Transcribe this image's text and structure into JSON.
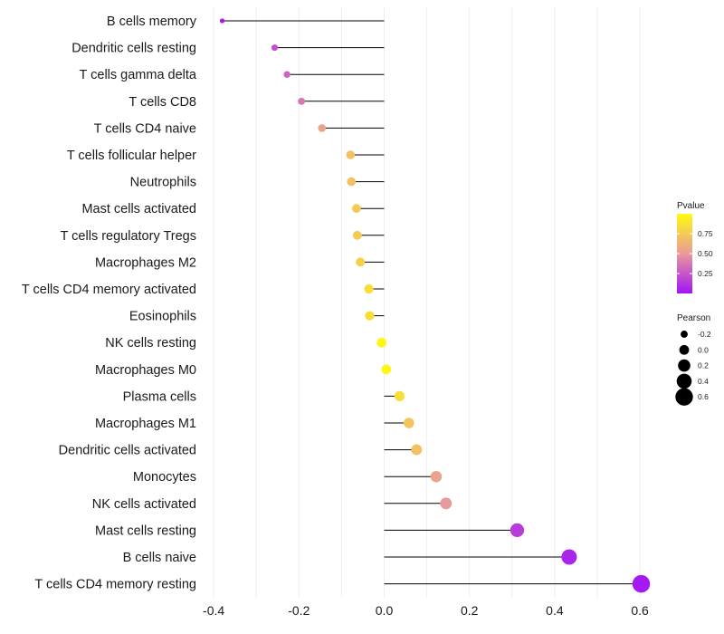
{
  "chart_data": {
    "type": "lollipop",
    "categories": [
      "B cells memory",
      "Dendritic cells resting",
      "T cells gamma delta",
      "T cells CD8",
      "T cells CD4 naive",
      "T cells follicular helper",
      "Neutrophils",
      "Mast cells activated",
      "T cells regulatory  Tregs ",
      "Macrophages M2",
      "T cells CD4 memory activated",
      "Eosinophils",
      "NK cells resting",
      "Macrophages M0",
      "Plasma cells",
      "Macrophages M1",
      "Dendritic cells activated",
      "Monocytes",
      "NK cells activated",
      "Mast cells resting",
      "B cells naive",
      "T cells CD4 memory resting"
    ],
    "pearson": [
      -0.38,
      -0.257,
      -0.228,
      -0.194,
      -0.146,
      -0.079,
      -0.077,
      -0.065,
      -0.063,
      -0.056,
      -0.036,
      -0.034,
      -0.006,
      0.005,
      0.036,
      0.058,
      0.076,
      0.122,
      0.145,
      0.312,
      0.434,
      0.603
    ],
    "pvalue": [
      0.02,
      0.22,
      0.3,
      0.38,
      0.55,
      0.7,
      0.7,
      0.75,
      0.75,
      0.78,
      0.85,
      0.85,
      0.98,
      0.98,
      0.85,
      0.72,
      0.7,
      0.55,
      0.5,
      0.15,
      0.06,
      0.02
    ],
    "xlim": [
      -0.42,
      0.66
    ],
    "xticks": [
      -0.4,
      -0.2,
      0.0,
      0.2,
      0.4,
      0.6
    ],
    "xtick_labels": [
      "-0.4",
      "-0.2",
      "0.0",
      "0.2",
      "0.4",
      "0.6"
    ],
    "title": "",
    "xlabel": "",
    "ylabel": "",
    "color_legend": {
      "title": "Pvalue",
      "range": [
        0,
        1
      ],
      "ticks": [
        0.25,
        0.5,
        0.75
      ],
      "tick_labels": [
        "0.25",
        "0.50",
        "0.75"
      ],
      "low_color": "#a214f7",
      "mid_color": "#e99a9a",
      "high_color": "#fffb0f"
    },
    "size_legend": {
      "title": "Pearson",
      "values": [
        -0.2,
        0.0,
        0.2,
        0.4,
        0.6
      ],
      "labels": [
        "-0.2",
        "0.0",
        "0.2",
        "0.4",
        "0.6"
      ]
    },
    "grid": true,
    "stem_color": "#000000"
  }
}
